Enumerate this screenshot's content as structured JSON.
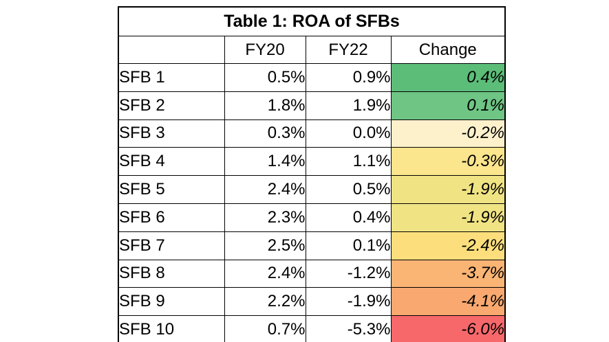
{
  "page": {
    "background": "#ffffff"
  },
  "table": {
    "title": "Table 1: ROA of SFBs",
    "headers": {
      "col0": "",
      "col1": "FY20",
      "col2": "FY22",
      "col3": "Change"
    },
    "border_color": "#000000",
    "text_color": "#000000",
    "rows": [
      {
        "name": "SFB 1",
        "fy20": "0.5%",
        "fy22": "0.9%",
        "change": "0.4%",
        "change_bg": "#5CBD79"
      },
      {
        "name": "SFB 2",
        "fy20": "1.8%",
        "fy22": "1.9%",
        "change": "0.1%",
        "change_bg": "#6EC584"
      },
      {
        "name": "SFB 3",
        "fy20": "0.3%",
        "fy22": "0.0%",
        "change": "-0.2%",
        "change_bg": "#FDF1CC"
      },
      {
        "name": "SFB 4",
        "fy20": "1.4%",
        "fy22": "1.1%",
        "change": "-0.3%",
        "change_bg": "#FBE58D"
      },
      {
        "name": "SFB 5",
        "fy20": "2.4%",
        "fy22": "0.5%",
        "change": "-1.9%",
        "change_bg": "#F0E383"
      },
      {
        "name": "SFB 6",
        "fy20": "2.3%",
        "fy22": "0.4%",
        "change": "-1.9%",
        "change_bg": "#F0E383"
      },
      {
        "name": "SFB 7",
        "fy20": "2.5%",
        "fy22": "0.1%",
        "change": "-2.4%",
        "change_bg": "#FCDF7C"
      },
      {
        "name": "SFB 8",
        "fy20": "2.4%",
        "fy22": "-1.2%",
        "change": "-3.7%",
        "change_bg": "#FAB474"
      },
      {
        "name": "SFB 9",
        "fy20": "2.2%",
        "fy22": "-1.9%",
        "change": "-4.1%",
        "change_bg": "#F9A96F"
      },
      {
        "name": "SFB 10",
        "fy20": "0.7%",
        "fy22": "-5.3%",
        "change": "-6.0%",
        "change_bg": "#F7686B"
      }
    ]
  },
  "chart_data": {
    "type": "table",
    "title": "Table 1: ROA of SFBs",
    "columns": [
      "",
      "FY20",
      "FY22",
      "Change"
    ],
    "categories": [
      "SFB 1",
      "SFB 2",
      "SFB 3",
      "SFB 4",
      "SFB 5",
      "SFB 6",
      "SFB 7",
      "SFB 8",
      "SFB 9",
      "SFB 10"
    ],
    "series": [
      {
        "name": "FY20",
        "values": [
          0.5,
          1.8,
          0.3,
          1.4,
          2.4,
          2.3,
          2.5,
          2.4,
          2.2,
          0.7
        ]
      },
      {
        "name": "FY22",
        "values": [
          0.9,
          1.9,
          0.0,
          1.1,
          0.5,
          0.4,
          0.1,
          -1.2,
          -1.9,
          -5.3
        ]
      },
      {
        "name": "Change",
        "values": [
          0.4,
          0.1,
          -0.2,
          -0.3,
          -1.9,
          -1.9,
          -2.4,
          -3.7,
          -4.1,
          -6.0
        ]
      }
    ],
    "units": "percent",
    "notes": "Change column uses a green-yellow-orange-red conditional color scale; change values italic",
    "rows": [
      [
        "SFB 1",
        "0.5%",
        "0.9%",
        "0.4%"
      ],
      [
        "SFB 2",
        "1.8%",
        "1.9%",
        "0.1%"
      ],
      [
        "SFB 3",
        "0.3%",
        "0.0%",
        "-0.2%"
      ],
      [
        "SFB 4",
        "1.4%",
        "1.1%",
        "-0.3%"
      ],
      [
        "SFB 5",
        "2.4%",
        "0.5%",
        "-1.9%"
      ],
      [
        "SFB 6",
        "2.3%",
        "0.4%",
        "-1.9%"
      ],
      [
        "SFB 7",
        "2.5%",
        "0.1%",
        "-2.4%"
      ],
      [
        "SFB 8",
        "2.4%",
        "-1.2%",
        "-3.7%"
      ],
      [
        "SFB 9",
        "2.2%",
        "-1.9%",
        "-4.1%"
      ],
      [
        "SFB 10",
        "0.7%",
        "-5.3%",
        "-6.0%"
      ]
    ]
  }
}
